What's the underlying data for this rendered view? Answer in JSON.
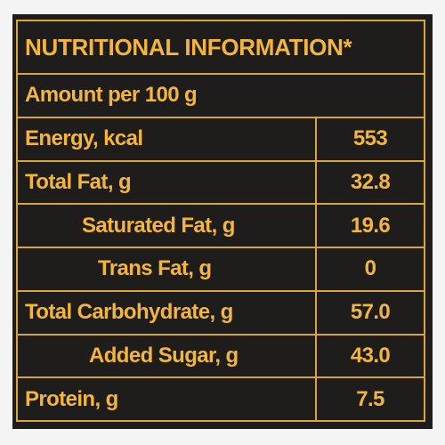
{
  "table": {
    "title": "NUTRITIONAL INFORMATION*",
    "subtitle": "Amount per 100 g",
    "rows": [
      [
        "Energy, kcal",
        "553"
      ],
      [
        "Total Fat, g",
        "32.8"
      ],
      [
        "Saturated Fat, g",
        "19.6"
      ],
      [
        "Trans Fat, g",
        "0"
      ],
      [
        "Total Carbohydrate, g",
        "57.0"
      ],
      [
        "Added Sugar, g",
        "43.0"
      ],
      [
        "Protein, g",
        "7.5"
      ]
    ]
  }
}
